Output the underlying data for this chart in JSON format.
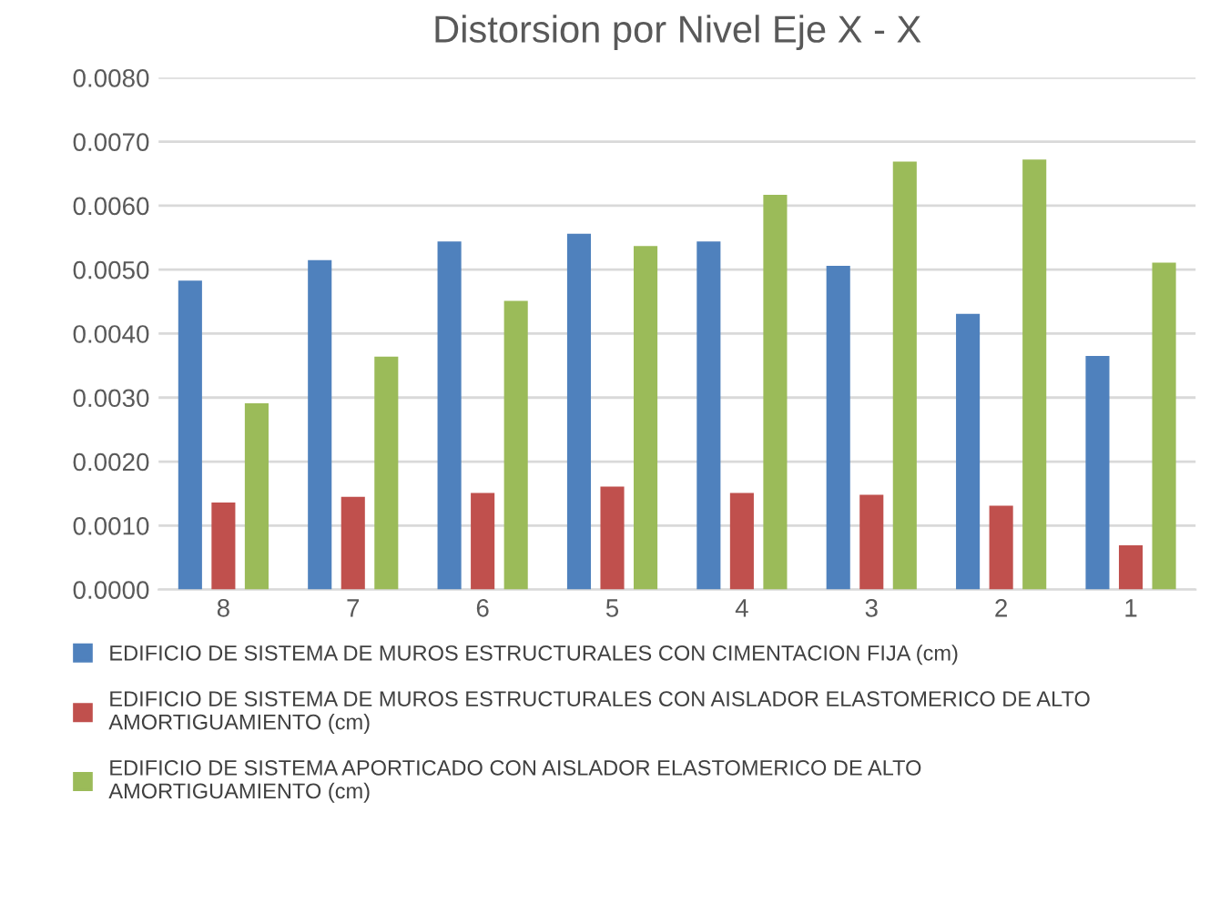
{
  "chart_data": {
    "type": "bar",
    "title": "Distorsion por Nivel Eje X - X",
    "categories": [
      "8",
      "7",
      "6",
      "5",
      "4",
      "3",
      "2",
      "1"
    ],
    "series": [
      {
        "name": "EDIFICIO DE SISTEMA DE MUROS ESTRUCTURALES CON CIMENTACION FIJA (cm)",
        "color": "#4f81bd",
        "values": [
          0.00483,
          0.00515,
          0.00544,
          0.00556,
          0.00544,
          0.00506,
          0.00431,
          0.00365
        ]
      },
      {
        "name": "EDIFICIO DE SISTEMA DE MUROS ESTRUCTURALES CON AISLADOR ELASTOMERICO DE ALTO AMORTIGUAMIENTO (cm)",
        "color": "#c0504d",
        "values": [
          0.00136,
          0.00145,
          0.00151,
          0.00161,
          0.00151,
          0.00148,
          0.00131,
          0.00069
        ]
      },
      {
        "name": "EDIFICIO DE SISTEMA APORTICADO CON AISLADOR ELASTOMERICO DE ALTO AMORTIGUAMIENTO (cm)",
        "color": "#9bbb59",
        "values": [
          0.00291,
          0.00364,
          0.00451,
          0.00537,
          0.00617,
          0.00669,
          0.00672,
          0.00511
        ]
      }
    ],
    "ylim": [
      0,
      0.008
    ],
    "yticks": [
      {
        "value": 0,
        "label": "0.0000"
      },
      {
        "value": 0.001,
        "label": "0.0010"
      },
      {
        "value": 0.002,
        "label": "0.0020"
      },
      {
        "value": 0.003,
        "label": "0.0030"
      },
      {
        "value": 0.004,
        "label": "0.0040"
      },
      {
        "value": 0.005,
        "label": "0.0050"
      },
      {
        "value": 0.006,
        "label": "0.0060"
      },
      {
        "value": 0.007,
        "label": "0.0070"
      },
      {
        "value": 0.008,
        "label": "0.0080"
      }
    ],
    "grid": "y",
    "legend": "bottom"
  }
}
